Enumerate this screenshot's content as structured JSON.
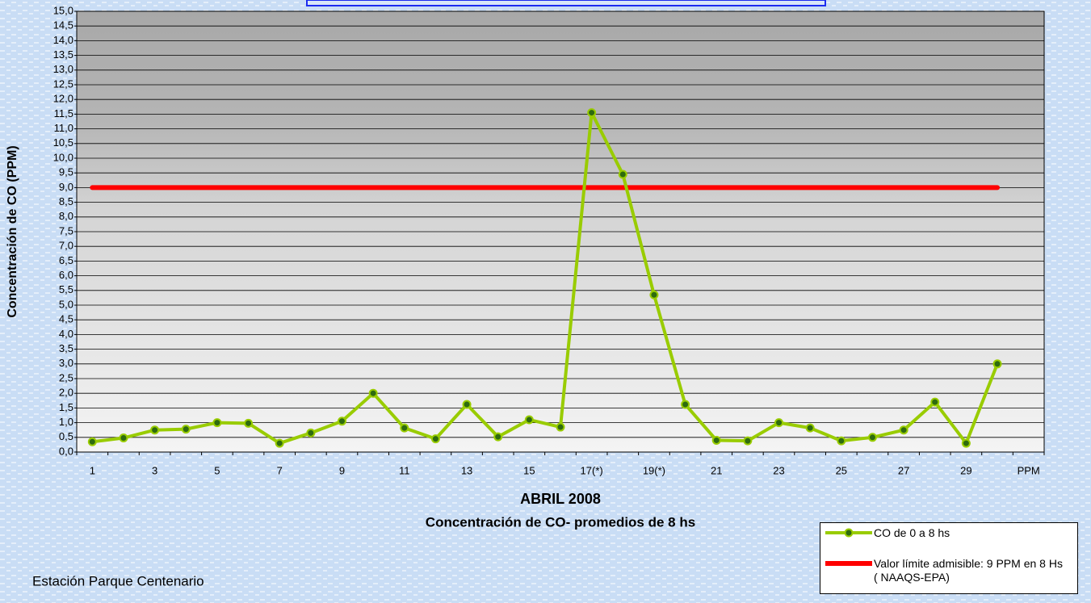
{
  "chart_data": {
    "type": "line",
    "title": "ABRIL 2008",
    "subtitle": "Concentración de CO- promedios de 8 hs",
    "y_label": "Concentración de CO (PPM)",
    "annotation": "Estación Parque Centenario",
    "categories": [
      "1",
      null,
      "3",
      null,
      "5",
      null,
      "7",
      null,
      "9",
      null,
      "11",
      null,
      "13",
      null,
      "15",
      null,
      "17(*)",
      null,
      "19(*)",
      null,
      "21",
      null,
      "23",
      null,
      "25",
      null,
      "27",
      null,
      "29",
      null,
      "PPM"
    ],
    "series": [
      {
        "name": "CO de 0 a 8 hs",
        "color": "#99cc00",
        "marker_color": "#2e6b0f",
        "markers": true,
        "values": [
          0.35,
          0.48,
          0.75,
          0.78,
          1.0,
          0.98,
          0.3,
          0.65,
          1.05,
          2.0,
          0.82,
          0.45,
          1.62,
          0.52,
          1.1,
          0.85,
          11.55,
          9.45,
          5.35,
          1.62,
          0.4,
          0.38,
          1.0,
          0.82,
          0.38,
          0.5,
          0.75,
          1.7,
          0.3,
          3.0,
          null
        ]
      },
      {
        "name": "Valor límite admisible: 9 PPM en 8 Hs ( NAAQS-EPA)",
        "color": "#ff0000",
        "markers": false,
        "values": [
          9,
          9,
          9,
          9,
          9,
          9,
          9,
          9,
          9,
          9,
          9,
          9,
          9,
          9,
          9,
          9,
          9,
          9,
          9,
          9,
          9,
          9,
          9,
          9,
          9,
          9,
          9,
          9,
          9,
          9,
          null
        ]
      }
    ],
    "ylim": [
      0,
      15
    ],
    "yticks": [
      {
        "value": 0,
        "label": "0,0"
      },
      {
        "value": 0.5,
        "label": "0,5"
      },
      {
        "value": 1,
        "label": "1,0"
      },
      {
        "value": 1.5,
        "label": "1,5"
      },
      {
        "value": 2,
        "label": "2,0"
      },
      {
        "value": 2.5,
        "label": "2,5"
      },
      {
        "value": 3,
        "label": "3,0"
      },
      {
        "value": 3.5,
        "label": "3,5"
      },
      {
        "value": 4,
        "label": "4,0"
      },
      {
        "value": 4.5,
        "label": "4,5"
      },
      {
        "value": 5,
        "label": "5,0"
      },
      {
        "value": 5.5,
        "label": "5,5"
      },
      {
        "value": 6,
        "label": "6,0"
      },
      {
        "value": 6.5,
        "label": "6,5"
      },
      {
        "value": 7,
        "label": "7,0"
      },
      {
        "value": 7.5,
        "label": "7,5"
      },
      {
        "value": 8,
        "label": "8,0"
      },
      {
        "value": 8.5,
        "label": "8,5"
      },
      {
        "value": 9,
        "label": "9,0"
      },
      {
        "value": 9.5,
        "label": "9,5"
      },
      {
        "value": 10,
        "label": "10,0"
      },
      {
        "value": 10.5,
        "label": "10,5"
      },
      {
        "value": 11,
        "label": "11,0"
      },
      {
        "value": 11.5,
        "label": "11,5"
      },
      {
        "value": 12,
        "label": "12,0"
      },
      {
        "value": 12.5,
        "label": "12,5"
      },
      {
        "value": 13,
        "label": "13,0"
      },
      {
        "value": 13.5,
        "label": "13,5"
      },
      {
        "value": 14,
        "label": "14,0"
      },
      {
        "value": 14.5,
        "label": "14,5"
      },
      {
        "value": 15,
        "label": "15,0"
      }
    ],
    "grid": true,
    "legend": "lower right"
  }
}
